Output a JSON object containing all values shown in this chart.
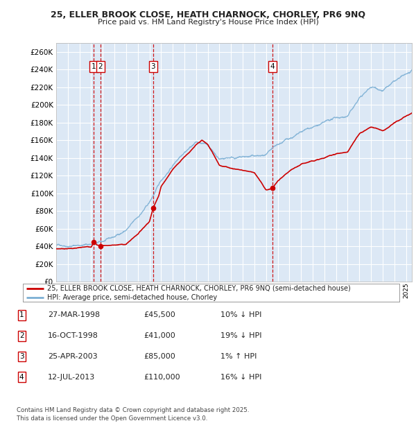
{
  "title1": "25, ELLER BROOK CLOSE, HEATH CHARNOCK, CHORLEY, PR6 9NQ",
  "title2": "Price paid vs. HM Land Registry's House Price Index (HPI)",
  "ytick_values": [
    0,
    20000,
    40000,
    60000,
    80000,
    100000,
    120000,
    140000,
    160000,
    180000,
    200000,
    220000,
    240000,
    260000
  ],
  "plot_bg_color": "#dce8f5",
  "grid_color": "#ffffff",
  "red_color": "#cc0000",
  "blue_color": "#7bafd4",
  "transactions": [
    {
      "label": "1",
      "date_num": 1998.23,
      "price": 45500
    },
    {
      "label": "2",
      "date_num": 1998.79,
      "price": 41000
    },
    {
      "label": "3",
      "date_num": 2003.32,
      "price": 85000
    },
    {
      "label": "4",
      "date_num": 2013.54,
      "price": 110000
    }
  ],
  "legend_line1": "25, ELLER BROOK CLOSE, HEATH CHARNOCK, CHORLEY, PR6 9NQ (semi-detached house)",
  "legend_line2": "HPI: Average price, semi-detached house, Chorley",
  "table_rows": [
    {
      "num": "1",
      "date": "27-MAR-1998",
      "price": "£45,500",
      "hpi": "10% ↓ HPI"
    },
    {
      "num": "2",
      "date": "16-OCT-1998",
      "price": "£41,000",
      "hpi": "19% ↓ HPI"
    },
    {
      "num": "3",
      "date": "25-APR-2003",
      "price": "£85,000",
      "hpi": "1% ↑ HPI"
    },
    {
      "num": "4",
      "date": "12-JUL-2013",
      "price": "£110,000",
      "hpi": "16% ↓ HPI"
    }
  ],
  "footnote1": "Contains HM Land Registry data © Crown copyright and database right 2025.",
  "footnote2": "This data is licensed under the Open Government Licence v3.0.",
  "xmin": 1995.0,
  "xmax": 2025.5,
  "ymin": 0,
  "ymax": 270000
}
